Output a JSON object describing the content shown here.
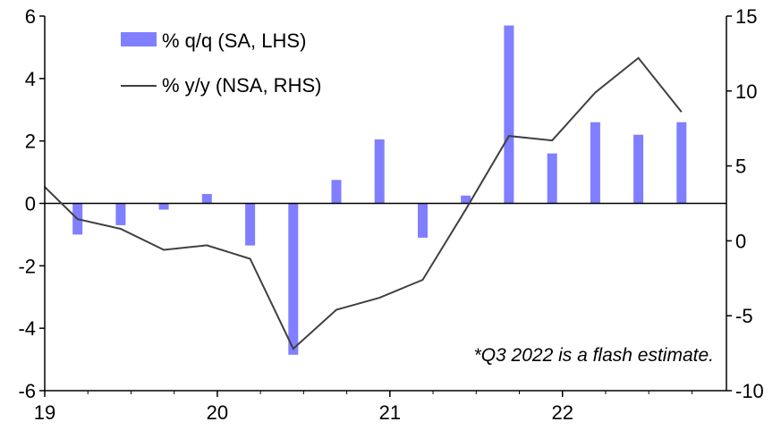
{
  "chart_data": {
    "type": "bar+line",
    "colors": {
      "bar": "#7f7fff",
      "line": "#404040",
      "axis": "#000000"
    },
    "x_axis": {
      "ticks": [
        "19",
        "20",
        "21",
        "22"
      ],
      "range": [
        2019.0,
        2022.95
      ]
    },
    "left_axis": {
      "ticks": [
        "6",
        "4",
        "2",
        "0",
        "-2",
        "-4",
        "-6"
      ],
      "ylim": [
        -6,
        6
      ]
    },
    "right_axis": {
      "ticks": [
        "15",
        "10",
        "5",
        "0",
        "-5",
        "-10"
      ],
      "ylim": [
        -10,
        15
      ]
    },
    "series": [
      {
        "name": "% q/q (SA, LHS)",
        "kind": "bar",
        "axis": "left",
        "x": [
          2019.19,
          2019.44,
          2019.69,
          2019.94,
          2020.19,
          2020.44,
          2020.69,
          2020.94,
          2021.19,
          2021.44,
          2021.69,
          2021.94,
          2022.19,
          2022.44,
          2022.69
        ],
        "values": [
          -1.0,
          -0.7,
          -0.2,
          0.3,
          -1.35,
          -4.85,
          0.75,
          2.05,
          -1.1,
          0.25,
          5.7,
          1.6,
          2.6,
          2.2,
          2.6
        ]
      },
      {
        "name": "% y/y (NSA, RHS)",
        "kind": "line",
        "axis": "right",
        "x": [
          2019.0,
          2019.19,
          2019.44,
          2019.69,
          2019.94,
          2020.19,
          2020.44,
          2020.69,
          2020.94,
          2021.19,
          2021.44,
          2021.69,
          2021.94,
          2022.19,
          2022.44,
          2022.69
        ],
        "values": [
          3.6,
          1.45,
          0.8,
          -0.6,
          -0.3,
          -1.2,
          -7.2,
          -4.6,
          -3.8,
          -2.6,
          2.1,
          7.0,
          6.7,
          9.9,
          12.2,
          8.6
        ]
      }
    ],
    "annotation": "*Q3 2022 is a flash estimate."
  }
}
